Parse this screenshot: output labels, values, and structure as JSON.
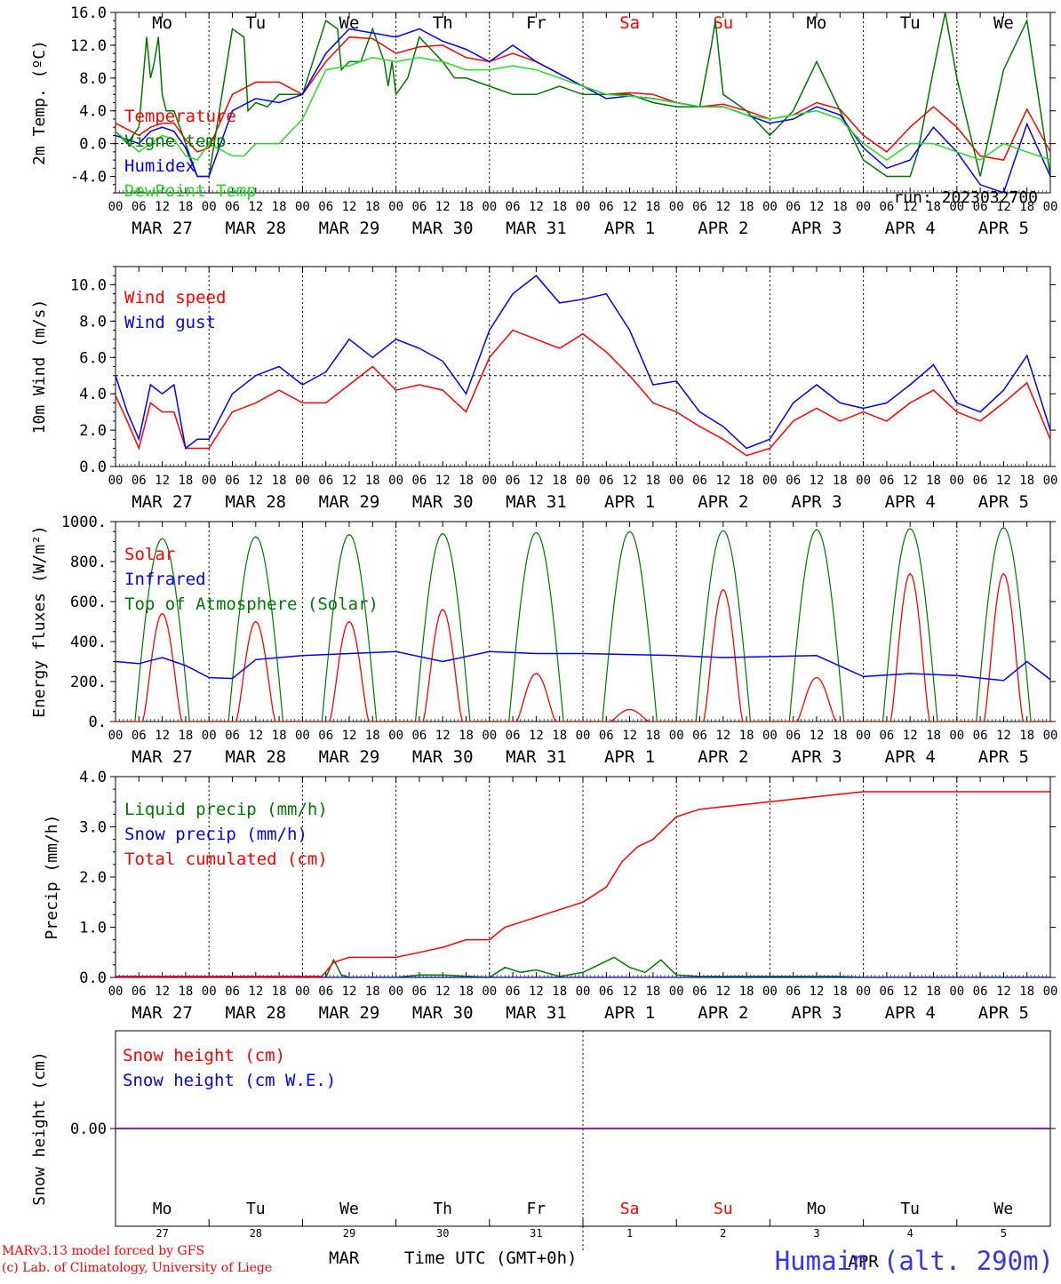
{
  "run_label": "run: 2023032700",
  "footer": {
    "model": "MARv3.13 model forced by GFS",
    "lab": "(c) Lab. of Climatology, University of Liege",
    "month": "MAR",
    "month2": "APR",
    "time_label": "Time UTC (GMT+0h)",
    "station": "Humain (alt. 290m)"
  },
  "colors": {
    "red": "#ff0000",
    "blue": "#0000ff",
    "green": "#007700",
    "lightgreen": "#22dd22",
    "purple": "#8800aa"
  },
  "days": [
    {
      "wd": "Mo",
      "date": "MAR 27",
      "num": "27",
      "weekend": false
    },
    {
      "wd": "Tu",
      "date": "MAR 28",
      "num": "28",
      "weekend": false
    },
    {
      "wd": "We",
      "date": "MAR 29",
      "num": "29",
      "weekend": false
    },
    {
      "wd": "Th",
      "date": "MAR 30",
      "num": "30",
      "weekend": false
    },
    {
      "wd": "Fr",
      "date": "MAR 31",
      "num": "31",
      "weekend": false
    },
    {
      "wd": "Sa",
      "date": "APR  1",
      "num": "1",
      "weekend": true
    },
    {
      "wd": "Su",
      "date": "APR  2",
      "num": "2",
      "weekend": true
    },
    {
      "wd": "Mo",
      "date": "APR  3",
      "num": "3",
      "weekend": false
    },
    {
      "wd": "Tu",
      "date": "APR  4",
      "num": "4",
      "weekend": false
    },
    {
      "wd": "We",
      "date": "APR  5",
      "num": "5",
      "weekend": false
    }
  ],
  "hour_ticks": [
    "00",
    "06",
    "12",
    "18"
  ],
  "chart_data": [
    {
      "type": "line",
      "ylabel": "2m Temp. (ºC)",
      "ylim": [
        -6,
        16
      ],
      "yticks": [
        "-4.0",
        "0.0",
        "4.0",
        "8.0",
        "12.0",
        "16.0"
      ],
      "ytick_values": [
        -4,
        0,
        4,
        8,
        12,
        16
      ],
      "ref_line": 0,
      "x_unit": "hours since MAR 27 00 UTC",
      "series": [
        {
          "name": "Temperature",
          "color": "red",
          "x": [
            0,
            6,
            9,
            12,
            15,
            18,
            21,
            24,
            30,
            36,
            42,
            48,
            54,
            60,
            66,
            72,
            78,
            84,
            90,
            96,
            102,
            108,
            114,
            120,
            126,
            132,
            138,
            144,
            150,
            156,
            162,
            168,
            174,
            180,
            186,
            192,
            198,
            204,
            210,
            216,
            222,
            228,
            234,
            240
          ],
          "y": [
            2.5,
            1,
            2,
            2.5,
            2.5,
            0.5,
            -1,
            -0.5,
            6,
            7.5,
            7.5,
            6,
            10,
            13,
            12.8,
            11,
            11.8,
            12,
            10.5,
            10,
            11,
            10,
            8.5,
            7,
            6,
            6.2,
            6,
            5,
            4.5,
            4.8,
            4,
            3,
            3.5,
            5,
            4.2,
            1,
            -1,
            2,
            4.5,
            2,
            -1.5,
            -2,
            4.2,
            -1
          ]
        },
        {
          "name": "Vigne temp",
          "color": "green",
          "x": [
            0,
            3,
            6,
            8,
            9,
            10,
            11,
            12,
            13,
            15,
            18,
            21,
            24,
            30,
            33,
            34,
            36,
            39,
            42,
            48,
            54,
            57,
            58,
            60,
            63,
            66,
            69,
            70,
            71,
            72,
            75,
            78,
            84,
            87,
            90,
            96,
            102,
            108,
            114,
            120,
            126,
            132,
            138,
            144,
            150,
            153,
            154,
            156,
            159,
            162,
            168,
            174,
            180,
            186,
            192,
            198,
            204,
            206,
            210,
            213,
            216,
            222,
            228,
            234,
            240
          ],
          "y": [
            1.5,
            0,
            2,
            13,
            8,
            10,
            13,
            6,
            4,
            4,
            0,
            -4,
            -4,
            14,
            13,
            4,
            5,
            4.5,
            6,
            6,
            15,
            14,
            9,
            10,
            10,
            14,
            10,
            7,
            10,
            6,
            8,
            13,
            10,
            8,
            8,
            7,
            6,
            6,
            7,
            6,
            6,
            6,
            5,
            4.5,
            4.5,
            12,
            15,
            6,
            5,
            4,
            1,
            4,
            10,
            4,
            -2,
            -4,
            -4,
            -1,
            9,
            16,
            8,
            -4,
            9,
            15,
            -4
          ]
        },
        {
          "name": "Humidex",
          "color": "blue",
          "x": [
            0,
            6,
            9,
            12,
            15,
            18,
            21,
            24,
            30,
            36,
            42,
            48,
            54,
            60,
            66,
            72,
            78,
            84,
            90,
            96,
            102,
            108,
            114,
            120,
            126,
            132,
            138,
            144,
            150,
            156,
            162,
            168,
            174,
            180,
            186,
            192,
            198,
            204,
            210,
            216,
            222,
            228,
            234,
            240
          ],
          "y": [
            1,
            0,
            1.5,
            2,
            1.5,
            -0.5,
            -4,
            -4,
            4,
            5.5,
            5,
            6,
            11,
            14,
            13.5,
            13,
            14,
            12.5,
            11.5,
            10,
            12,
            10,
            8.5,
            7,
            5.5,
            5.8,
            5.5,
            5,
            4.5,
            4.5,
            3.5,
            2.5,
            3,
            4.5,
            3.5,
            -0.5,
            -3,
            -2,
            2,
            -1,
            -5,
            -6,
            2.4,
            -4
          ]
        },
        {
          "name": "DewPoint Temp",
          "color": "lightgreen",
          "x": [
            0,
            6,
            9,
            12,
            15,
            18,
            21,
            24,
            30,
            33,
            36,
            42,
            48,
            54,
            60,
            66,
            72,
            78,
            84,
            90,
            96,
            102,
            108,
            114,
            120,
            126,
            132,
            138,
            144,
            150,
            156,
            162,
            168,
            174,
            180,
            186,
            192,
            198,
            204,
            210,
            216,
            222,
            228,
            234,
            240
          ],
          "y": [
            1.5,
            -1,
            0,
            1,
            0.5,
            -1.5,
            -2,
            0,
            -1.5,
            -1.5,
            0,
            0,
            3,
            9,
            9.5,
            10.5,
            10,
            10.5,
            10,
            9,
            9,
            9.5,
            9,
            8,
            7,
            6,
            5.8,
            5.5,
            5,
            4.5,
            4.5,
            3.5,
            3,
            3.5,
            4,
            3,
            0,
            -2,
            0,
            0,
            -1,
            -2,
            0,
            -1,
            -2
          ]
        }
      ]
    },
    {
      "type": "line",
      "ylabel": "10m Wind (m/s)",
      "ylim": [
        0,
        11
      ],
      "yticks": [
        "0.0",
        "2.0",
        "4.0",
        "6.0",
        "8.0",
        "10.0"
      ],
      "ytick_values": [
        0,
        2,
        4,
        6,
        8,
        10
      ],
      "ref_line": 5,
      "series": [
        {
          "name": "Wind speed",
          "color": "red",
          "x": [
            0,
            3,
            6,
            9,
            12,
            15,
            18,
            21,
            24,
            30,
            36,
            42,
            48,
            54,
            60,
            66,
            72,
            78,
            84,
            90,
            96,
            102,
            108,
            114,
            120,
            126,
            132,
            138,
            144,
            150,
            156,
            162,
            168,
            174,
            180,
            186,
            192,
            198,
            204,
            210,
            216,
            222,
            228,
            234,
            240
          ],
          "y": [
            3.9,
            2.5,
            1,
            3.5,
            3,
            3,
            1,
            1,
            1,
            3,
            3.5,
            4.2,
            3.5,
            3.5,
            4.5,
            5.5,
            4.2,
            4.5,
            4.2,
            3,
            6,
            7.5,
            7,
            6.5,
            7.3,
            6.3,
            5,
            3.5,
            3,
            2.2,
            1.5,
            0.6,
            1,
            2.5,
            3.2,
            2.5,
            3,
            2.5,
            3.5,
            4.2,
            3,
            2.5,
            3.5,
            4.6,
            1.5
          ]
        },
        {
          "name": "Wind gust",
          "color": "blue",
          "x": [
            0,
            3,
            6,
            9,
            12,
            15,
            18,
            21,
            24,
            30,
            36,
            42,
            48,
            54,
            60,
            66,
            72,
            78,
            84,
            90,
            96,
            102,
            108,
            114,
            120,
            126,
            132,
            138,
            144,
            150,
            156,
            162,
            168,
            174,
            180,
            186,
            192,
            198,
            204,
            210,
            216,
            222,
            228,
            234,
            240
          ],
          "y": [
            5,
            3,
            1.5,
            4.5,
            4,
            4.5,
            1,
            1.5,
            1.5,
            4,
            5,
            5.5,
            4.5,
            5.2,
            7,
            6,
            7,
            6.5,
            5.8,
            4,
            7.5,
            9.5,
            10.5,
            9,
            9.2,
            9.5,
            7.5,
            4.5,
            4.7,
            3,
            2.2,
            1,
            1.5,
            3.5,
            4.5,
            3.5,
            3.2,
            3.5,
            4.5,
            5.6,
            3.5,
            3,
            4.2,
            6.1,
            2
          ]
        }
      ]
    },
    {
      "type": "line",
      "ylabel": "Energy fluxes (W/m²)",
      "ylim": [
        0,
        1000
      ],
      "yticks": [
        "0.",
        "200.",
        "400.",
        "600.",
        "800.",
        "1000."
      ],
      "ytick_values": [
        0,
        200,
        400,
        600,
        800,
        1000
      ],
      "ref_line": null,
      "toa_peaks": [
        915,
        925,
        935,
        940,
        945,
        950,
        955,
        960,
        965,
        970
      ],
      "solar_peaks": [
        540,
        500,
        500,
        560,
        240,
        60,
        660,
        220,
        740,
        740
      ],
      "infrared": {
        "x": [
          0,
          6,
          12,
          18,
          24,
          30,
          36,
          42,
          48,
          60,
          72,
          84,
          96,
          108,
          120,
          132,
          144,
          156,
          168,
          180,
          192,
          204,
          216,
          228,
          234,
          240
        ],
        "y": [
          300,
          290,
          320,
          280,
          220,
          215,
          310,
          320,
          330,
          340,
          350,
          300,
          350,
          340,
          340,
          335,
          330,
          320,
          325,
          330,
          225,
          240,
          230,
          205,
          300,
          210
        ]
      },
      "series": [
        {
          "name": "Solar",
          "color": "red"
        },
        {
          "name": "Infrared",
          "color": "blue"
        },
        {
          "name": "Top of Atmosphere (Solar)",
          "color": "green"
        }
      ]
    },
    {
      "type": "line",
      "ylabel": "Precip (mm/h)",
      "ylim": [
        0,
        4
      ],
      "yticks": [
        "0.0",
        "1.0",
        "2.0",
        "3.0",
        "4.0"
      ],
      "ytick_values": [
        0,
        1,
        2,
        3,
        4
      ],
      "ref_line": null,
      "series": [
        {
          "name": "Liquid precip (mm/h)",
          "color": "green",
          "x": [
            0,
            48,
            54,
            56,
            58,
            60,
            72,
            78,
            84,
            96,
            100,
            104,
            108,
            114,
            120,
            124,
            128,
            132,
            136,
            140,
            144,
            150,
            156,
            162,
            168,
            174,
            180,
            186,
            192,
            240
          ],
          "y": [
            0,
            0,
            0,
            0.35,
            0.05,
            0,
            0,
            0.05,
            0.05,
            0,
            0.2,
            0.1,
            0.15,
            0.02,
            0.1,
            0.25,
            0.4,
            0.2,
            0.1,
            0.35,
            0.05,
            0.02,
            0.02,
            0.02,
            0.02,
            0.02,
            0.02,
            0.02,
            0,
            0
          ]
        },
        {
          "name": "Snow precip (mm/h)",
          "color": "blue",
          "x": [
            0,
            240
          ],
          "y": [
            0,
            0
          ]
        },
        {
          "name": "Total cumulated (cm)",
          "color": "red",
          "x": [
            0,
            48,
            53,
            56,
            60,
            66,
            72,
            78,
            84,
            90,
            96,
            100,
            108,
            114,
            120,
            126,
            130,
            134,
            138,
            144,
            150,
            156,
            162,
            168,
            174,
            180,
            186,
            192,
            198,
            204,
            216,
            228,
            240
          ],
          "y": [
            0.02,
            0.02,
            0.02,
            0.3,
            0.4,
            0.4,
            0.4,
            0.5,
            0.6,
            0.75,
            0.75,
            1,
            1.2,
            1.35,
            1.5,
            1.8,
            2.3,
            2.6,
            2.75,
            3.2,
            3.35,
            3.4,
            3.45,
            3.5,
            3.55,
            3.6,
            3.65,
            3.7,
            3.7,
            3.7,
            3.7,
            3.7,
            3.7
          ]
        }
      ]
    },
    {
      "type": "line",
      "ylabel": "Snow height (cm)",
      "ylim": [
        -1,
        1
      ],
      "yticks": [
        "0.00"
      ],
      "ytick_values": [
        0
      ],
      "ref_line": null,
      "series": [
        {
          "name": "Snow height (cm)",
          "color": "red",
          "x": [
            0,
            240
          ],
          "y": [
            0,
            0
          ]
        },
        {
          "name": "Snow height (cm W.E.)",
          "color": "blue",
          "x": [
            0,
            240
          ],
          "y": [
            0,
            0
          ]
        }
      ]
    }
  ]
}
